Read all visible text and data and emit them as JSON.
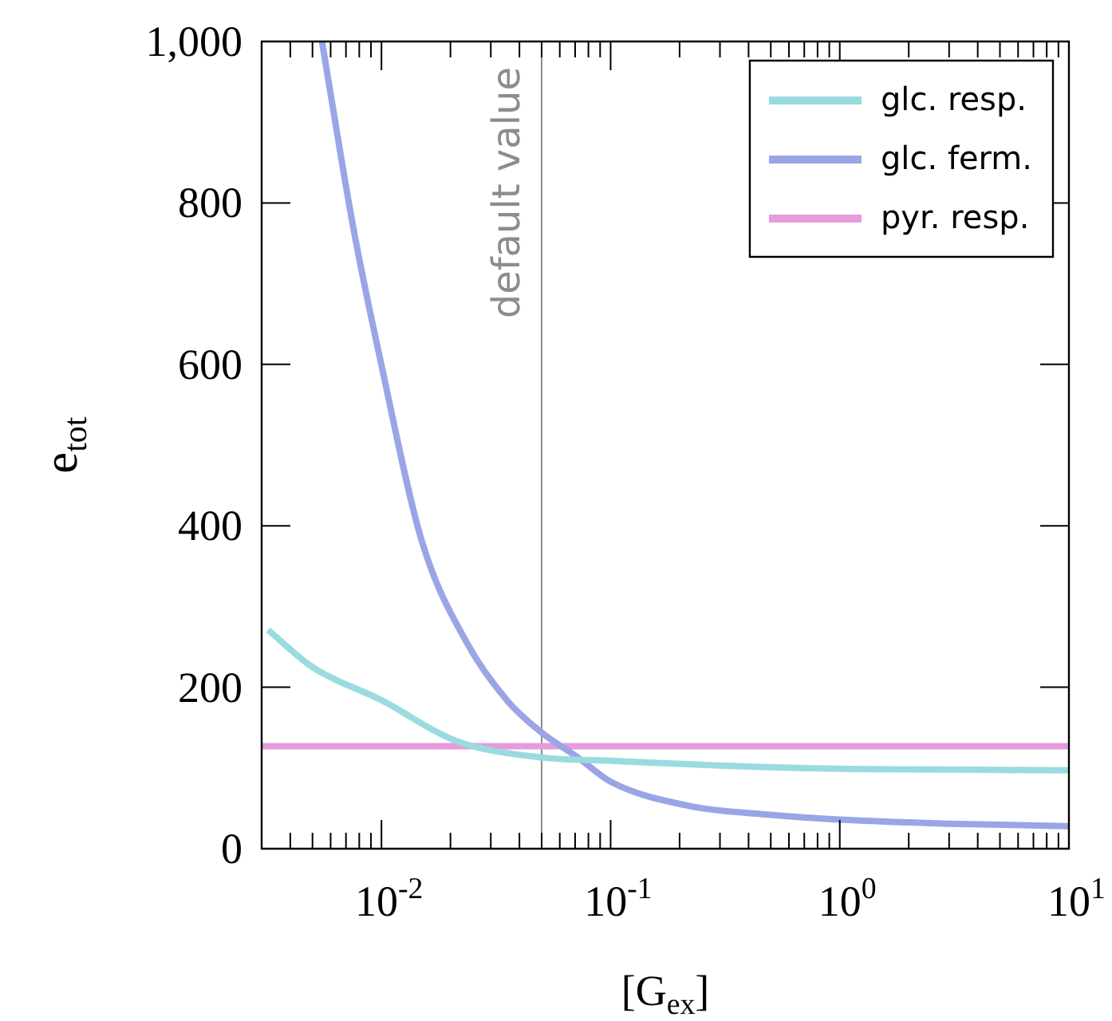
{
  "chart_data": {
    "type": "line",
    "xlabel": "[G$_{ex}$]",
    "ylabel": "e$_{tot}$",
    "log": "x",
    "legend": "top right",
    "grid": false,
    "line_style": "solid",
    "marker": "none",
    "xlim": [
      0.003,
      10
    ],
    "ylim": [
      0,
      1000
    ],
    "xticks": [
      {
        "value": 0.004,
        "label": null
      },
      {
        "value": 0.005,
        "label": null
      },
      {
        "value": 0.006,
        "label": null
      },
      {
        "value": 0.007,
        "label": null
      },
      {
        "value": 0.008,
        "label": null
      },
      {
        "value": 0.009,
        "label": null
      },
      {
        "value": 0.01,
        "label": "10$^{-2}$"
      },
      {
        "value": 0.02,
        "label": null
      },
      {
        "value": 0.03,
        "label": null
      },
      {
        "value": 0.04,
        "label": null
      },
      {
        "value": 0.05,
        "label": null
      },
      {
        "value": 0.06,
        "label": null
      },
      {
        "value": 0.07,
        "label": null
      },
      {
        "value": 0.08,
        "label": null
      },
      {
        "value": 0.09,
        "label": null
      },
      {
        "value": 0.1,
        "label": "10$^{-1}$"
      },
      {
        "value": 0.2,
        "label": null
      },
      {
        "value": 0.3,
        "label": null
      },
      {
        "value": 0.4,
        "label": null
      },
      {
        "value": 0.5,
        "label": null
      },
      {
        "value": 0.6,
        "label": null
      },
      {
        "value": 0.7,
        "label": null
      },
      {
        "value": 0.8,
        "label": null
      },
      {
        "value": 0.9,
        "label": null
      },
      {
        "value": 1,
        "label": "10$^{0}$"
      },
      {
        "value": 2,
        "label": null
      },
      {
        "value": 3,
        "label": null
      },
      {
        "value": 4,
        "label": null
      },
      {
        "value": 5,
        "label": null
      },
      {
        "value": 6,
        "label": null
      },
      {
        "value": 7,
        "label": null
      },
      {
        "value": 8,
        "label": null
      },
      {
        "value": 9,
        "label": null
      },
      {
        "value": 10,
        "label": "10$^{1}$"
      }
    ],
    "yticks": [
      0,
      200,
      400,
      600,
      800,
      {
        "value": 1000,
        "label": "1,000"
      }
    ],
    "ref_lines": [
      {
        "axis": "x",
        "value": 0.05,
        "label": "default value",
        "color": "#8c8c8c"
      }
    ],
    "series": [
      {
        "name": "glc. resp.",
        "color": "#9adbe0",
        "x": [
          0.0032,
          0.005,
          0.01,
          0.021,
          0.05,
          0.1,
          0.3,
          1,
          3,
          10
        ],
        "values": [
          271,
          225,
          184,
          134,
          113,
          109,
          103,
          99,
          98,
          97
        ]
      },
      {
        "name": "glc. ferm.",
        "color": "#9aa5e6",
        "x": [
          0.0055,
          0.00755,
          0.01,
          0.015,
          0.0237,
          0.0355,
          0.05,
          0.072,
          0.1,
          0.22,
          0.5,
          1,
          3,
          10
        ],
        "values": [
          1000,
          768,
          599,
          381,
          254,
          183,
          144,
          113,
          83,
          53,
          42,
          36,
          31,
          28
        ]
      },
      {
        "name": "pyr. resp.",
        "color": "#e59bdc",
        "x": [
          0.003,
          10
        ],
        "values": [
          127,
          127
        ]
      }
    ]
  }
}
